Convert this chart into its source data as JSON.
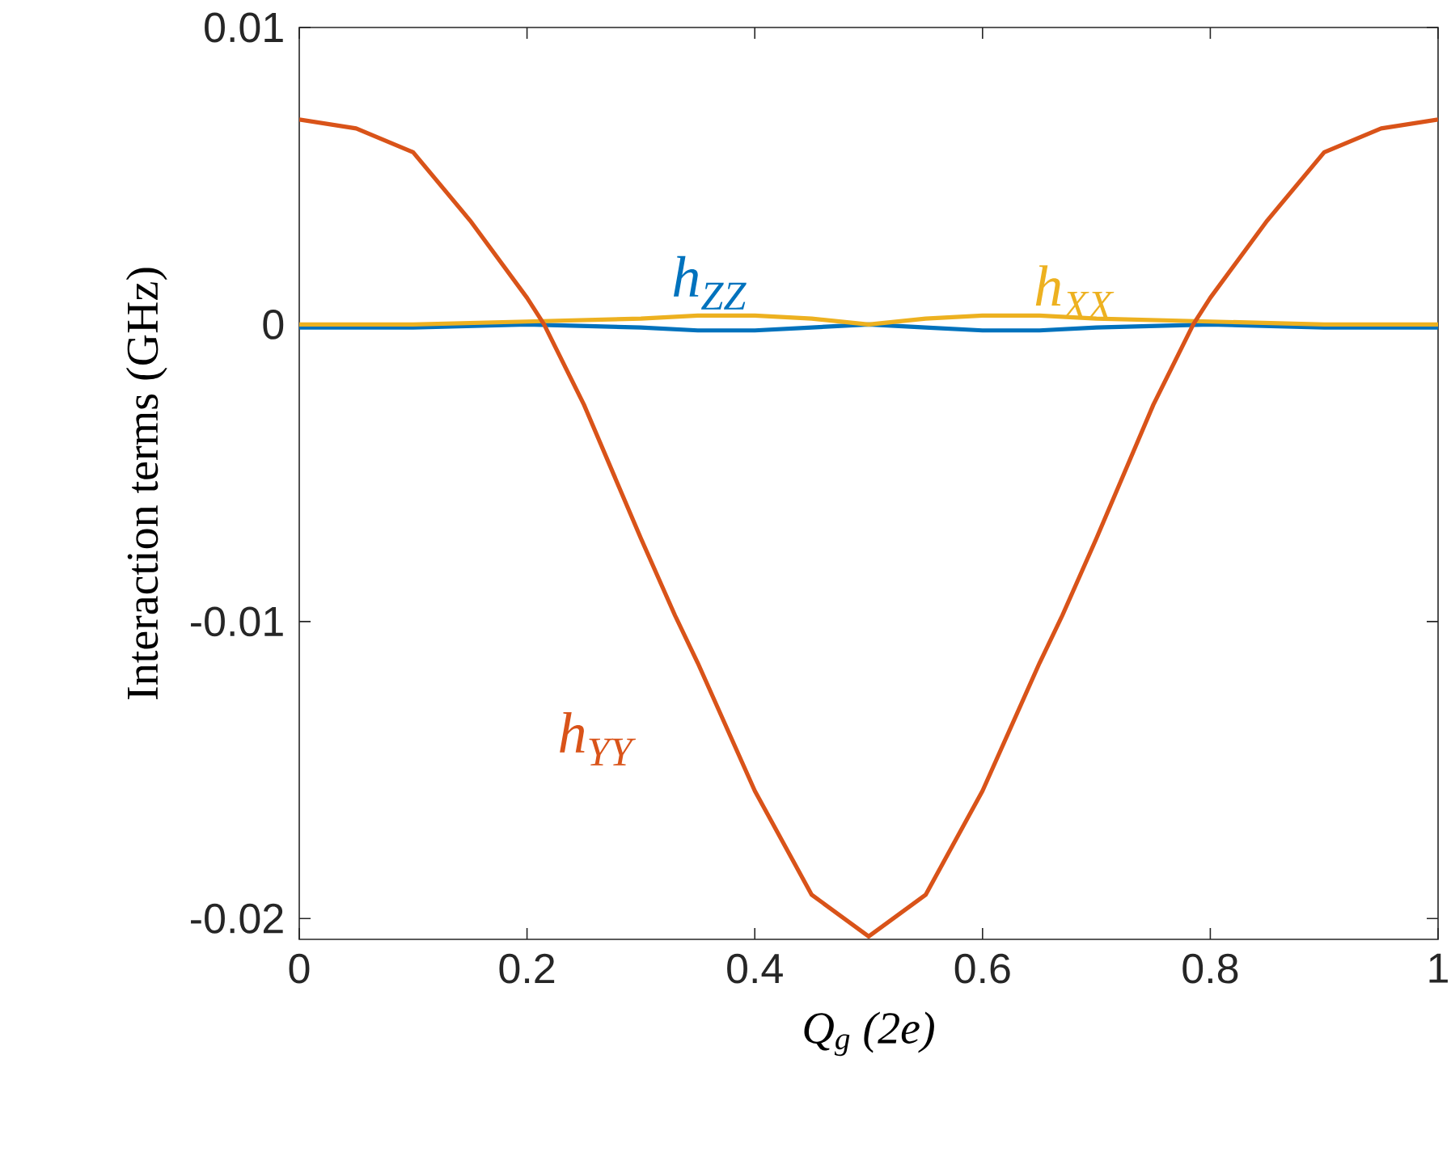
{
  "chart_data": {
    "type": "line",
    "xlabel": "Q$_{g}$ (2e)",
    "ylabel": "Interaction terms (GHz)",
    "xlim": [
      0,
      1
    ],
    "ylim": [
      -0.0207,
      0.01
    ],
    "xticks": [
      0,
      0.2,
      0.4,
      0.6,
      0.8,
      1
    ],
    "yticks": [
      -0.02,
      -0.01,
      0,
      0.01
    ],
    "grid": false,
    "legend": false,
    "line_style": "solid",
    "marker": "none",
    "series": [
      {
        "name": "h$_{ZZ}$",
        "color": "#0072bd",
        "x": [
          0,
          0.1,
          0.2,
          0.3,
          0.35,
          0.4,
          0.45,
          0.5,
          0.55,
          0.6,
          0.65,
          0.7,
          0.8,
          0.9,
          1
        ],
        "values": [
          -0.0001,
          -0.0001,
          0,
          -0.0001,
          -0.0002,
          -0.0002,
          -0.0001,
          0,
          -0.0001,
          -0.0002,
          -0.0002,
          -0.0001,
          0,
          -0.0001,
          -0.0001
        ]
      },
      {
        "name": "h$_{XX}$",
        "color": "#edb120",
        "x": [
          0,
          0.1,
          0.2,
          0.3,
          0.35,
          0.4,
          0.45,
          0.5,
          0.55,
          0.6,
          0.65,
          0.7,
          0.8,
          0.9,
          1
        ],
        "values": [
          0,
          0,
          0.0001,
          0.0002,
          0.0003,
          0.0003,
          0.0002,
          0,
          0.0002,
          0.0003,
          0.0003,
          0.0002,
          0.0001,
          0,
          0
        ]
      },
      {
        "name": "h$_{YY}$",
        "color": "#d95319",
        "x": [
          0,
          0.05,
          0.1,
          0.15,
          0.2,
          0.215,
          0.25,
          0.3,
          0.33,
          0.35,
          0.4,
          0.45,
          0.5,
          0.55,
          0.6,
          0.65,
          0.67,
          0.7,
          0.75,
          0.785,
          0.8,
          0.85,
          0.9,
          0.95,
          1
        ],
        "values": [
          0.0069,
          0.0066,
          0.0058,
          0.0035,
          0.0009,
          0,
          -0.0027,
          -0.0072,
          -0.0098,
          -0.0114,
          -0.0157,
          -0.0192,
          -0.0206,
          -0.0192,
          -0.0157,
          -0.0114,
          -0.0098,
          -0.0072,
          -0.0027,
          0,
          0.0009,
          0.0035,
          0.0058,
          0.0066,
          0.0069
        ]
      }
    ]
  }
}
